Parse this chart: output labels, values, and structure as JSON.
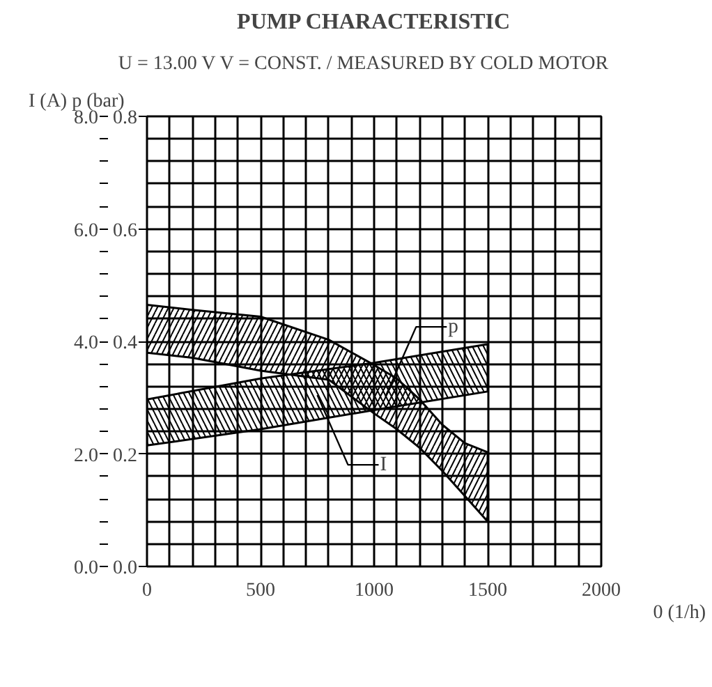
{
  "chart_data": {
    "type": "area",
    "title": "PUMP CHARACTERISTIC",
    "subtitle": "U = 13.00 V     V = CONST. / MEASURED BY COLD MOTOR",
    "xlabel": "0 (1/h)",
    "ylabel": "I (A)",
    "y2label": "p (bar)",
    "xlim": [
      0,
      2000
    ],
    "ylim": [
      0,
      8
    ],
    "y2lim": [
      0,
      0.8
    ],
    "xticks": [
      0,
      {
        "value": 100,
        "label": null
      },
      {
        "value": 200,
        "label": null
      },
      {
        "value": 300,
        "label": null
      },
      {
        "value": 400,
        "label": null
      },
      500,
      {
        "value": 600,
        "label": null
      },
      {
        "value": 700,
        "label": null
      },
      {
        "value": 800,
        "label": null
      },
      {
        "value": 900,
        "label": null
      },
      1000,
      {
        "value": 1100,
        "label": null
      },
      {
        "value": 1200,
        "label": null
      },
      {
        "value": 1300,
        "label": null
      },
      {
        "value": 1400,
        "label": null
      },
      1500,
      {
        "value": 1600,
        "label": null
      },
      {
        "value": 1700,
        "label": null
      },
      {
        "value": 1800,
        "label": null
      },
      {
        "value": 1900,
        "label": null
      },
      2000
    ],
    "yticks": [
      {
        "value": 0,
        "label": "0.0"
      },
      {
        "value": 0.4,
        "label": null
      },
      {
        "value": 0.8,
        "label": null
      },
      {
        "value": 1.2,
        "label": null
      },
      {
        "value": 1.6,
        "label": null
      },
      {
        "value": 2,
        "label": "2.0"
      },
      {
        "value": 2.4,
        "label": null
      },
      {
        "value": 2.8,
        "label": null
      },
      {
        "value": 3.2,
        "label": null
      },
      {
        "value": 3.6,
        "label": null
      },
      {
        "value": 4,
        "label": "4.0"
      },
      {
        "value": 4.4,
        "label": null
      },
      {
        "value": 4.8,
        "label": null
      },
      {
        "value": 5.2,
        "label": null
      },
      {
        "value": 5.6,
        "label": null
      },
      {
        "value": 6,
        "label": "6.0"
      },
      {
        "value": 6.4,
        "label": null
      },
      {
        "value": 6.8,
        "label": null
      },
      {
        "value": 7.2,
        "label": null
      },
      {
        "value": 7.6,
        "label": null
      },
      {
        "value": 8,
        "label": "8.0"
      }
    ],
    "y2ticks": [
      {
        "value": 0,
        "label": "0.0"
      },
      0.2,
      0.4,
      0.6,
      0.8
    ],
    "grid": true,
    "series": [
      {
        "axis": "y2",
        "color": "#000000",
        "x": [
          0,
          200,
          500,
          800,
          1000,
          1100,
          1200,
          1300,
          1400,
          1500
        ],
        "values": [
          null,
          null,
          null,
          null,
          null,
          null,
          null,
          null,
          null,
          null
        ],
        "upper": [
          0.465,
          0.456,
          0.444,
          0.403,
          0.358,
          0.334,
          0.297,
          0.252,
          0.219,
          0.203
        ],
        "lower": [
          0.38,
          0.371,
          0.348,
          0.332,
          0.272,
          0.244,
          0.211,
          0.17,
          0.125,
          0.08
        ]
      },
      {
        "axis": "y",
        "color": "#000000",
        "x": [
          0,
          500,
          1000,
          1500
        ],
        "values": [
          null,
          null,
          null,
          null
        ],
        "upper": [
          2.97,
          3.34,
          3.62,
          3.95
        ],
        "lower": [
          2.15,
          2.44,
          2.78,
          3.11
        ]
      }
    ],
    "annotations": [
      "p",
      "I"
    ]
  }
}
